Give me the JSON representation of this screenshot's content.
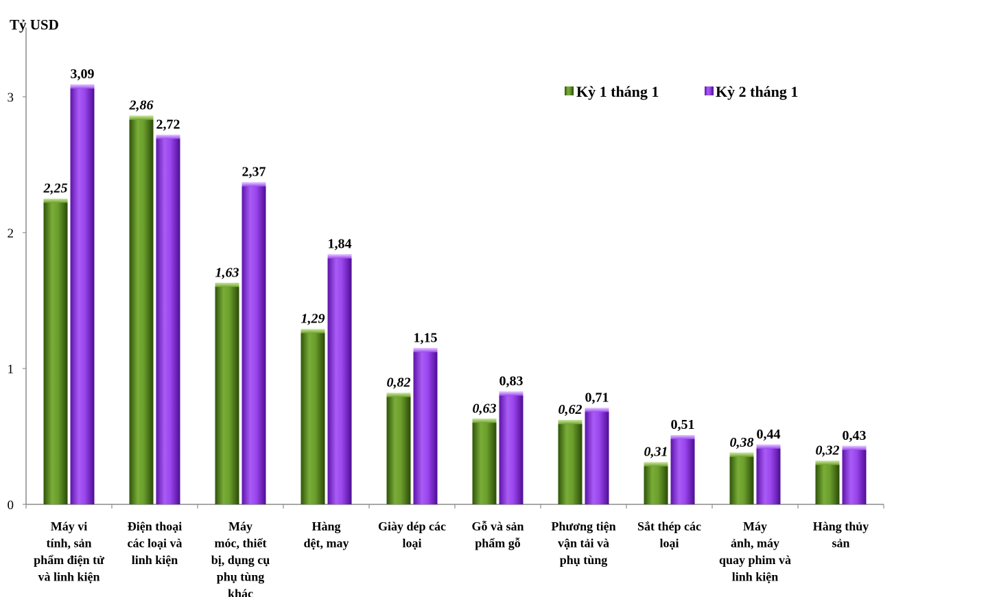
{
  "chart_data": {
    "type": "bar",
    "title": "",
    "xlabel": "",
    "ylabel": "Tỷ USD",
    "ylim": [
      0,
      3
    ],
    "yticks": [
      0,
      1,
      2,
      3
    ],
    "grid": false,
    "legend_placement": "top-right",
    "categories": [
      [
        "Máy vi",
        "tính, sản",
        "phẩm điện tử",
        "và linh kiện"
      ],
      [
        "Điện thoại",
        "các loại và",
        "linh kiện"
      ],
      [
        "Máy",
        "móc, thiết",
        "bị, dụng cụ",
        "phụ tùng",
        "khác"
      ],
      [
        "Hàng",
        "dệt, may"
      ],
      [
        "Giày dép các",
        "loại"
      ],
      [
        "Gỗ và sản",
        "phẩm gỗ"
      ],
      [
        "Phương tiện",
        "vận tải và",
        "phụ tùng"
      ],
      [
        "Sắt thép các",
        "loại"
      ],
      [
        "Máy",
        "ảnh, máy",
        "quay phim và",
        "linh kiện"
      ],
      [
        "Hàng thủy",
        "sản"
      ]
    ],
    "series": [
      {
        "name": "Kỳ 1 tháng 1",
        "color": "#5a8a1e",
        "values": [
          2.25,
          2.86,
          1.63,
          1.29,
          0.82,
          0.63,
          0.62,
          0.31,
          0.38,
          0.32
        ],
        "labels": [
          "2,25",
          "2,86",
          "1,63",
          "1,29",
          "0,82",
          "0,63",
          "0,62",
          "0,31",
          "0,38",
          "0,32"
        ]
      },
      {
        "name": "Kỳ 2 tháng 1",
        "color": "#8a2be2",
        "values": [
          3.09,
          2.72,
          2.37,
          1.84,
          1.15,
          0.83,
          0.71,
          0.51,
          0.44,
          0.43
        ],
        "labels": [
          "3,09",
          "2,72",
          "2,37",
          "1,84",
          "1,15",
          "0,83",
          "0,71",
          "0,51",
          "0,44",
          "0,43"
        ]
      }
    ]
  }
}
